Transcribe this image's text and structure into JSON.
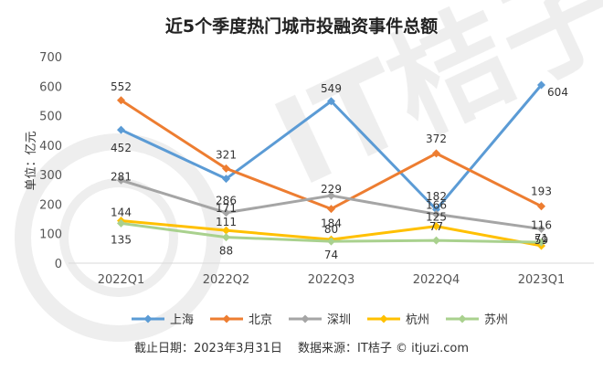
{
  "chart_data": {
    "type": "line",
    "title": "近5个季度热门城市投融资事件总额",
    "ylabel": "单位：亿元",
    "xlabel": "",
    "categories": [
      "2022Q1",
      "2022Q2",
      "2022Q3",
      "2022Q4",
      "2023Q1"
    ],
    "ylim": [
      0,
      700
    ],
    "yticks": [
      0,
      100,
      200,
      300,
      400,
      500,
      600,
      700
    ],
    "grid": false,
    "legend_position": "bottom",
    "series": [
      {
        "name": "上海",
        "color": "#5b9bd5",
        "values": [
          452,
          286,
          549,
          182,
          604
        ]
      },
      {
        "name": "北京",
        "color": "#ed7d31",
        "values": [
          552,
          321,
          184,
          372,
          193
        ]
      },
      {
        "name": "深圳",
        "color": "#a5a5a5",
        "values": [
          281,
          171,
          229,
          166,
          116
        ]
      },
      {
        "name": "杭州",
        "color": "#ffc000",
        "values": [
          144,
          111,
          80,
          125,
          59
        ]
      },
      {
        "name": "苏州",
        "color": "#a9d18e",
        "values": [
          135,
          88,
          74,
          77,
          71
        ]
      }
    ]
  },
  "footer": "截止日期：2023年3月31日　  数据来源：IT桔子 © itjuzi.com"
}
